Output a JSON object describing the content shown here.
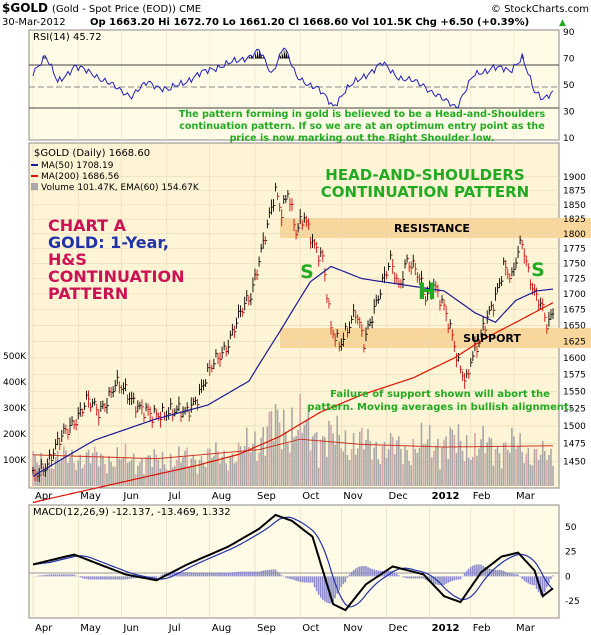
{
  "header": {
    "symbol": "$GOLD",
    "description": "(Gold - Spot Price (EOD)) CME",
    "watermark": "© StockCharts.com",
    "date": "30-Mar-2012",
    "quote": "Op 1663.20  Hi 1672.70  Lo 1661.20  Cl 1668.60  Vol 101.5K  Chg +6.50 (+0.39%)",
    "quote_arrow": "▲"
  },
  "rsi_panel": {
    "label": "RSI(14) 45.72",
    "ticks": [
      "90",
      "70",
      "50",
      "30",
      "10"
    ],
    "note": [
      "The pattern forming in gold is believed to be a Head-and-Shoulders",
      "continuation pattern. If so we are at an optimum entry point as the",
      "price is now marking out the Right Shoulder low."
    ]
  },
  "price_panel": {
    "legend_title": "$GOLD (Daily) 1668.60",
    "legend_ma50": "MA(50) 1708.19",
    "legend_ma200": "MA(200) 1686.56",
    "legend_volume": "Volume 101.47K, EMA(60) 154.67K",
    "price_ticks": [
      "1900",
      "1875",
      "1850",
      "1825",
      "1800",
      "1775",
      "1750",
      "1725",
      "1700",
      "1675",
      "1650",
      "1625",
      "1600",
      "1575",
      "1550",
      "1525",
      "1500",
      "1475",
      "1450"
    ],
    "volume_ticks": [
      "500K",
      "400K",
      "300K",
      "200K",
      "100K"
    ],
    "chart_a_title": [
      "CHART A",
      "GOLD: 1-Year,",
      "H&S",
      "CONTINUATION",
      "PATTERN"
    ],
    "pattern_title": [
      "HEAD-AND-SHOULDERS",
      "CONTINUATION PATTERN"
    ],
    "resistance_label": "RESISTANCE",
    "support_label": "SUPPORT",
    "s_left": "S",
    "h_label": "H",
    "s_right": "S",
    "failure_note": [
      "Failure of support shown will abort the",
      "pattern. Moving averages in bullish alignment."
    ]
  },
  "macd_panel": {
    "label": "MACD(12,26,9) -12.137, -13.469, 1.332",
    "ticks": [
      "50",
      "25",
      "0",
      "-25"
    ]
  },
  "x_axis": {
    "months": [
      "Apr",
      "May",
      "Jun",
      "Jul",
      "Aug",
      "Sep",
      "Oct",
      "Nov",
      "Dec",
      "2012",
      "Feb",
      "Mar"
    ]
  },
  "colors": {
    "panel_bg": "#fffbe6",
    "price_bg": "#fff5d6",
    "band": "#f8d69c",
    "rsi_line": "#2222bb",
    "ma50": "#1a1a99",
    "ma200": "#dd1100",
    "chart_a_red": "#cc1155",
    "chart_a_blue": "#2233aa",
    "green_text": "#22aa22",
    "volume": "#a8a8a8",
    "macd_hist": "#8c8ccc"
  },
  "chart_data": [
    {
      "type": "line",
      "title": "$GOLD (Daily) price with MA(50) and MA(200)",
      "ylim": [
        1425,
        1925
      ],
      "y_scale": "log",
      "x": [
        "Apr-2011",
        "May",
        "Jun",
        "Jul",
        "Aug",
        "Sep",
        "Oct",
        "Nov",
        "Dec",
        "Jan-2012",
        "Feb",
        "Mar",
        "30-Mar-2012"
      ],
      "series": [
        {
          "name": "$GOLD (Daily)",
          "values": [
            1425,
            1535,
            1530,
            1510,
            1650,
            1840,
            1625,
            1700,
            1725,
            1600,
            1660,
            1760,
            1668.6
          ]
        },
        {
          "name": "MA(50)",
          "values": [
            1430,
            1480,
            1510,
            1530,
            1550,
            1650,
            1740,
            1715,
            1705,
            1690,
            1650,
            1680,
            1708.19
          ]
        },
        {
          "name": "MA(200)",
          "values": [
            1395,
            1420,
            1440,
            1455,
            1465,
            1490,
            1520,
            1545,
            1565,
            1610,
            1640,
            1665,
            1686.56
          ]
        }
      ],
      "annotations": [
        "RESISTANCE 1775-1800",
        "SUPPORT 1610-1635",
        "S",
        "H",
        "S"
      ]
    },
    {
      "type": "line",
      "title": "RSI(14)",
      "ylim": [
        10,
        90
      ],
      "x": [
        "Apr-2011",
        "May",
        "Jun",
        "Jul",
        "Aug",
        "Sep",
        "Oct",
        "Nov",
        "Dec",
        "Jan-2012",
        "Feb",
        "Mar",
        "30-Mar-2012"
      ],
      "series": [
        {
          "name": "RSI(14)",
          "values": [
            60,
            58,
            50,
            54,
            66,
            58,
            48,
            54,
            50,
            40,
            54,
            52,
            45.72
          ]
        }
      ],
      "reference_lines": [
        70,
        30
      ]
    },
    {
      "type": "bar",
      "title": "Volume",
      "ylim": [
        0,
        500000
      ],
      "x": [
        "Apr-2011",
        "May",
        "Jun",
        "Jul",
        "Aug",
        "Sep",
        "Oct",
        "Nov",
        "Dec",
        "Jan-2012",
        "Feb",
        "Mar",
        "30-Mar-2012"
      ],
      "series": [
        {
          "name": "Volume",
          "values": [
            95000,
            110000,
            90000,
            100000,
            180000,
            190000,
            150000,
            140000,
            160000,
            140000,
            150000,
            120000,
            101470
          ]
        },
        {
          "name": "EMA(60)",
          "values": [
            120000,
            115000,
            105000,
            108000,
            140000,
            175000,
            165000,
            150000,
            150000,
            145000,
            145000,
            140000,
            154670
          ]
        }
      ]
    },
    {
      "type": "line",
      "title": "MACD(12,26,9)",
      "ylim": [
        -40,
        70
      ],
      "x": [
        "Apr-2011",
        "May",
        "Jun",
        "Jul",
        "Aug",
        "Sep",
        "Oct",
        "Nov",
        "Dec",
        "Jan-2012",
        "Feb",
        "Mar",
        "30-Mar-2012"
      ],
      "series": [
        {
          "name": "MACD",
          "values": [
            12,
            22,
            5,
            10,
            40,
            52,
            -30,
            10,
            0,
            -25,
            25,
            5,
            -12.137
          ]
        },
        {
          "name": "Signal",
          "values": [
            10,
            18,
            8,
            8,
            30,
            55,
            -15,
            2,
            5,
            -18,
            15,
            10,
            -13.469
          ]
        },
        {
          "name": "Histogram",
          "values": [
            2,
            4,
            -3,
            2,
            10,
            -3,
            -15,
            8,
            -5,
            -7,
            10,
            -5,
            1.332
          ]
        }
      ]
    }
  ]
}
